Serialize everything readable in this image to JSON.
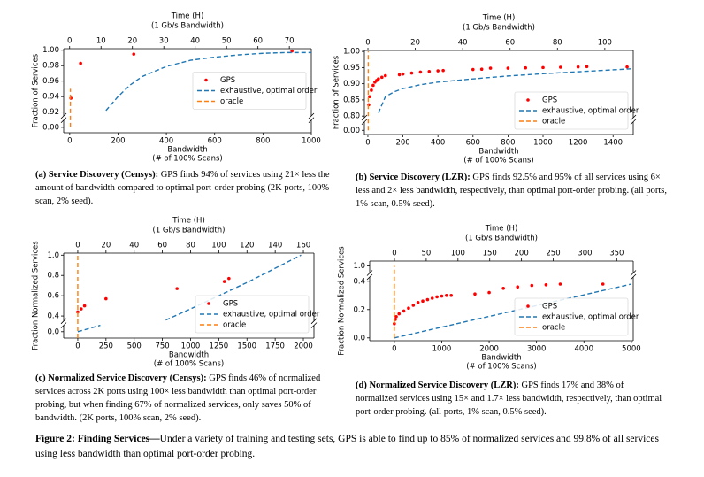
{
  "chart_data": [
    {
      "type": "line",
      "x2label": "Time (H)",
      "x2sublabel": "(1 Gb/s Bandwidth)",
      "xlabel": "Bandwidth",
      "xsublabel": "(# of 100% Scans)",
      "ylabel": "Fraction of Services",
      "xlim": [
        -25,
        1000
      ],
      "xticks": [
        0,
        200,
        400,
        600,
        800,
        1000
      ],
      "x2lim": [
        -1.9,
        77
      ],
      "x2ticks": [
        0,
        10,
        20,
        30,
        40,
        50,
        60,
        70
      ],
      "ylim": [
        -0.003,
        1.002
      ],
      "ybreak": [
        0.004,
        0.915
      ],
      "yticks": [
        {
          "value": 0,
          "label": "0.00"
        },
        0.92,
        0.94,
        0.96,
        0.98,
        {
          "value": 1,
          "label": "1.00"
        }
      ],
      "legend": "center right",
      "series": [
        {
          "name": "GPS",
          "type": "scatter",
          "color": "#ff0000",
          "x": [
            5,
            45,
            265,
            920
          ],
          "values": [
            0.938,
            0.983,
            0.995,
            0.999
          ]
        },
        {
          "name": "exhaustive, optimal order",
          "type": "dashed",
          "color": "#1f77b4",
          "x": [
            150,
            200,
            250,
            300,
            400,
            500,
            600,
            700,
            800,
            900,
            1000
          ],
          "values": [
            0.922,
            0.94,
            0.955,
            0.966,
            0.979,
            0.987,
            0.991,
            0.994,
            0.996,
            0.997,
            0.997
          ]
        },
        {
          "name": "oracle",
          "type": "dashed",
          "color": "#ff7f0e",
          "x": [
            3,
            3
          ],
          "values": [
            0,
            0.95
          ]
        }
      ]
    },
    {
      "type": "line",
      "x2label": "Time (H)",
      "x2sublabel": "(1 Gb/s Bandwidth)",
      "xlabel": "Bandwidth",
      "xsublabel": "(# of 100% Scans)",
      "ylabel": "Fraction of Services",
      "xlim": [
        -20,
        1515
      ],
      "xticks": [
        0,
        200,
        400,
        600,
        800,
        1000,
        1200,
        1400
      ],
      "x2lim": [
        -1.5,
        112
      ],
      "x2ticks": [
        0,
        20,
        40,
        60,
        80,
        100
      ],
      "ylim": [
        -0.005,
        1.003
      ],
      "ybreak": [
        0.01,
        0.795
      ],
      "yticks": [
        {
          "value": 0,
          "label": "0.00"
        },
        {
          "value": 0.8,
          "label": "0.80"
        },
        0.85,
        {
          "value": 0.9,
          "label": "0.90"
        },
        0.95,
        {
          "value": 1,
          "label": "1.00"
        }
      ],
      "legend": "lower right",
      "series": [
        {
          "name": "GPS",
          "type": "scatter",
          "color": "#ff0000",
          "x": [
            5,
            10,
            20,
            30,
            40,
            50,
            60,
            80,
            100,
            180,
            200,
            250,
            300,
            350,
            400,
            430,
            600,
            650,
            700,
            800,
            900,
            1000,
            1100,
            1200,
            1250,
            1480
          ],
          "values": [
            0.835,
            0.86,
            0.88,
            0.895,
            0.905,
            0.91,
            0.915,
            0.92,
            0.925,
            0.928,
            0.93,
            0.933,
            0.936,
            0.938,
            0.94,
            0.941,
            0.944,
            0.945,
            0.948,
            0.948,
            0.949,
            0.95,
            0.951,
            0.952,
            0.953,
            0.952
          ]
        },
        {
          "name": "exhaustive, optimal order",
          "type": "dashed",
          "color": "#1f77b4",
          "x": [
            60,
            100,
            150,
            200,
            300,
            400,
            600,
            800,
            1000,
            1200,
            1500
          ],
          "values": [
            0.81,
            0.86,
            0.875,
            0.885,
            0.897,
            0.905,
            0.915,
            0.924,
            0.931,
            0.937,
            0.946
          ]
        },
        {
          "name": "oracle",
          "type": "dashed",
          "color": "#ff7f0e",
          "x": [
            2,
            2
          ],
          "values": [
            0,
            1.0
          ]
        }
      ]
    },
    {
      "type": "line",
      "x2label": "Time (H)",
      "x2sublabel": "(1 Gb/s Bandwidth)",
      "xlabel": "Bandwidth",
      "xsublabel": "(# of 100% Scans)",
      "ylabel": "Fraction Normalized Services",
      "xlim": [
        -125,
        2094
      ],
      "xticks": [
        0,
        250,
        500,
        750,
        1000,
        1250,
        1500,
        1750,
        2000
      ],
      "x2lim": [
        -10,
        167.5
      ],
      "x2ticks": [
        0,
        20,
        40,
        60,
        80,
        100,
        120,
        140,
        160
      ],
      "ylim": [
        -0.05,
        1.02
      ],
      "ybreak": [
        0.05,
        0.35
      ],
      "yticks": [
        {
          "value": 0,
          "label": "0.0"
        },
        0.4,
        0.6,
        0.8,
        {
          "value": 1,
          "label": "1.0"
        }
      ],
      "legend": "lower right",
      "series": [
        {
          "name": "GPS",
          "type": "scatter",
          "color": "#ff0000",
          "x": [
            0,
            30,
            60,
            250,
            880,
            1300,
            1340
          ],
          "values": [
            0.44,
            0.47,
            0.5,
            0.57,
            0.67,
            0.74,
            0.77
          ]
        },
        {
          "name": "exhaustive, optimal order",
          "type": "dashed",
          "color": "#1f77b4",
          "x": [
            0,
            200,
            700,
            780,
            1000,
            1500,
            1980
          ],
          "values": [
            0,
            0.05,
            null,
            0.36,
            0.47,
            0.73,
            1.0
          ]
        },
        {
          "name": "oracle",
          "type": "dashed",
          "color": "#ff7f0e",
          "x": [
            0,
            0
          ],
          "values": [
            -0.05,
            1.0
          ]
        }
      ]
    },
    {
      "type": "line",
      "x2label": "Time (H)",
      "x2sublabel": "(1 Gb/s Bandwidth)",
      "xlabel": "Bandwidth",
      "xsublabel": "(# of 100% Scans)",
      "ylabel": "Fraction Normalized Services",
      "xlim": [
        -520,
        5040
      ],
      "xticks": [
        0,
        1000,
        2000,
        3000,
        4000,
        5000
      ],
      "x2lim": [
        -39,
        376
      ],
      "x2ticks": [
        0,
        50,
        100,
        150,
        200,
        250,
        300,
        350
      ],
      "ylim": [
        -0.02,
        1.02
      ],
      "ybreak": [
        0.43,
        0.97
      ],
      "yticks": [
        {
          "value": 0,
          "label": "0.0"
        },
        0.2,
        0.4,
        {
          "value": 1,
          "label": "1.0"
        }
      ],
      "legend": "lower right",
      "series": [
        {
          "name": "GPS",
          "type": "scatter",
          "color": "#ff0000",
          "x": [
            0,
            20,
            40,
            100,
            200,
            300,
            400,
            500,
            600,
            700,
            800,
            900,
            1000,
            1100,
            1200,
            1700,
            2000,
            2300,
            2600,
            2900,
            3200,
            3500,
            4400
          ],
          "values": [
            0.1,
            0.13,
            0.15,
            0.17,
            0.19,
            0.21,
            0.23,
            0.25,
            0.26,
            0.27,
            0.28,
            0.29,
            0.295,
            0.3,
            0.3,
            0.31,
            0.32,
            0.35,
            0.36,
            0.37,
            0.375,
            0.38,
            0.38
          ]
        },
        {
          "name": "exhaustive, optimal order",
          "type": "dashed",
          "color": "#1f77b4",
          "x": [
            0,
            5000
          ],
          "values": [
            0,
            0.38
          ]
        },
        {
          "name": "oracle",
          "type": "dashed",
          "color": "#ff7f0e",
          "x": [
            0,
            0
          ],
          "values": [
            0,
            1.0
          ]
        }
      ]
    }
  ],
  "captions": [
    {
      "label": "(a) Service Discovery (Censys):",
      "text": "GPS finds 94% of services using 21× less the amount of bandwidth compared to optimal port-order probing (2K ports, 100% scan, 2% seed)."
    },
    {
      "label": "(b) Service Discovery (LZR):",
      "text": "GPS finds 92.5% and 95% of all services using 6× less and 2× less bandwidth, respectively, than optimal port-order probing. (all ports, 1% scan, 0.5% seed)."
    },
    {
      "label": "(c) Normalized Service Discovery (Censys):",
      "text": "GPS finds 46% of normalized services across 2K ports using 100× less bandwidth than optimal port-order probing, but when finding 67% of normalized services, only saves 50% of bandwidth. (2K ports, 100% scan, 2% seed)."
    },
    {
      "label": "(d) Normalized Service Discovery (LZR):",
      "text": "GPS finds 17% and 38% of normalized services using 15× and 1.7× less bandwidth, respectively, than optimal port-order probing. (all ports, 1% scan, 0.5% seed)."
    }
  ],
  "figure_caption": {
    "label": "Figure 2: Finding Services—",
    "text": "Under a variety of training and testing sets, GPS is able to find up to 85% of normalized services and 99.8% of all services using less bandwidth than optimal port-order probing."
  }
}
